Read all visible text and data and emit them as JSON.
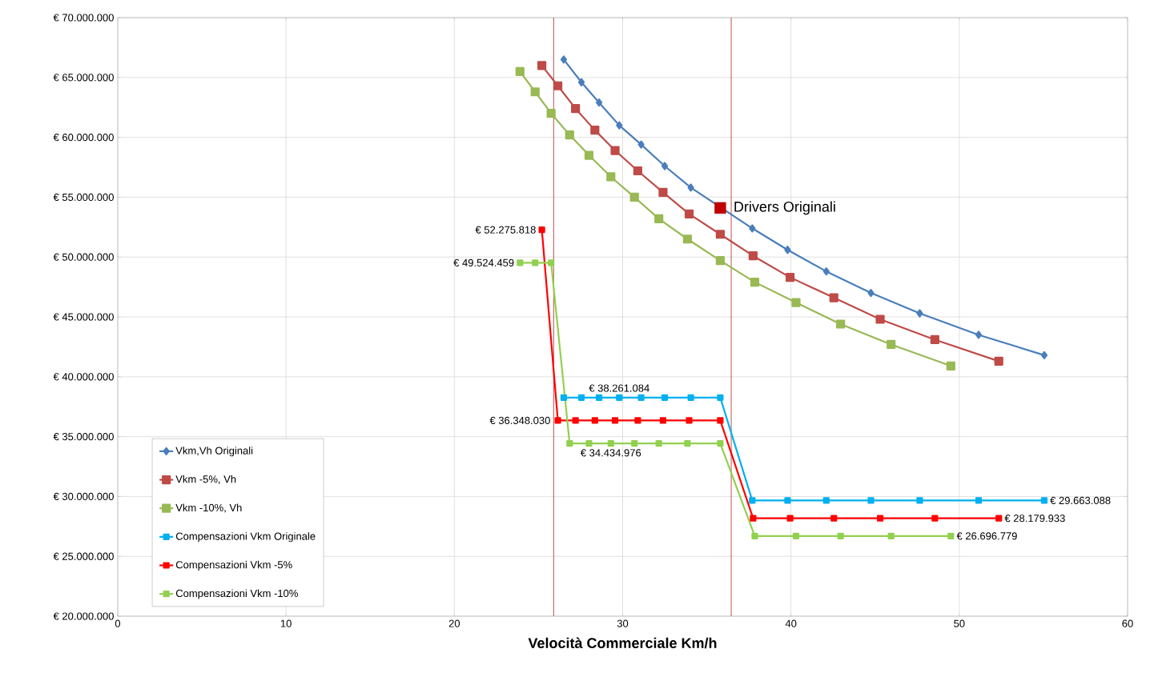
{
  "chart_data": {
    "type": "line",
    "xlabel": "Velocità Commerciale Km/h",
    "xlim": [
      0,
      60
    ],
    "xticks": [
      0,
      10,
      20,
      30,
      40,
      50,
      60
    ],
    "ylim": [
      20000000,
      70000000
    ],
    "yticks": [
      {
        "value": 20000000,
        "label": "€ 20.000.000"
      },
      {
        "value": 25000000,
        "label": "€ 25.000.000"
      },
      {
        "value": 30000000,
        "label": "€ 30.000.000"
      },
      {
        "value": 35000000,
        "label": "€ 35.000.000"
      },
      {
        "value": 40000000,
        "label": "€ 40.000.000"
      },
      {
        "value": 45000000,
        "label": "€ 45.000.000"
      },
      {
        "value": 50000000,
        "label": "€ 50.000.000"
      },
      {
        "value": 55000000,
        "label": "€ 55.000.000"
      },
      {
        "value": 60000000,
        "label": "€ 60.000.000"
      },
      {
        "value": 65000000,
        "label": "€ 65.000.000"
      },
      {
        "value": 70000000,
        "label": "€ 70.000.000"
      }
    ],
    "grid": true,
    "legend": "bottom left",
    "line_style": "solid",
    "series": [
      {
        "name": "Vkm,Vh Originali",
        "color": "#4a7ebb",
        "marker": "diamond",
        "x": [
          26.5,
          27.55,
          28.6,
          29.8,
          31.1,
          32.5,
          34.05,
          35.8,
          37.7,
          39.8,
          42.1,
          44.75,
          47.65,
          51.15,
          55.05
        ],
        "values": [
          66500000,
          64600000,
          62900000,
          61000000,
          59400000,
          57600000,
          55800000,
          null,
          52400000,
          50600000,
          48800000,
          47000000,
          45300000,
          43500000,
          41800000
        ]
      },
      {
        "name": "Vkm -5%, Vh",
        "color": "#be4b48",
        "marker": "square",
        "x": [
          25.2,
          26.15,
          27.2,
          28.35,
          29.55,
          30.9,
          32.4,
          33.95,
          35.8,
          37.75,
          39.95,
          42.55,
          45.3,
          48.55,
          52.35
        ],
        "values": [
          66000000,
          64300000,
          62400000,
          60600000,
          58900000,
          57200000,
          55400000,
          53600000,
          51900000,
          50100000,
          48300000,
          46600000,
          44800000,
          43100000,
          41300000
        ]
      },
      {
        "name": "Vkm -10%, Vh",
        "color": "#98b954",
        "marker": "square",
        "x": [
          23.9,
          24.8,
          25.75,
          26.85,
          28.0,
          29.3,
          30.7,
          32.15,
          33.85,
          35.8,
          37.85,
          40.3,
          42.95,
          45.95,
          49.5
        ],
        "values": [
          65500000,
          63800000,
          62000000,
          60200000,
          58500000,
          56700000,
          55000000,
          53200000,
          51500000,
          49700000,
          47900000,
          46200000,
          44400000,
          42700000,
          40900000
        ]
      },
      {
        "name": "Compensazioni Vkm Originale",
        "color": "#00b0f0",
        "marker": "square",
        "x": [
          26.5,
          27.55,
          28.6,
          29.8,
          31.1,
          32.5,
          34.05,
          35.8,
          37.7,
          39.8,
          42.1,
          44.75,
          47.65,
          51.15,
          55.05
        ],
        "values": [
          38261084,
          38261084,
          38261084,
          38261084,
          38261084,
          38261084,
          38261084,
          38261084,
          29663088,
          29663088,
          29663088,
          29663088,
          29663088,
          29663088,
          29663088
        ],
        "value_labels": [
          null,
          null,
          null,
          "€ 38.261.084",
          null,
          null,
          null,
          null,
          null,
          null,
          null,
          null,
          null,
          null,
          "€ 29.663.088"
        ]
      },
      {
        "name": "Compensazioni Vkm -5%",
        "color": "#ff0000",
        "marker": "square",
        "x": [
          25.2,
          26.15,
          27.2,
          28.35,
          29.55,
          30.9,
          32.4,
          33.95,
          35.8,
          37.75,
          39.95,
          42.55,
          45.3,
          48.55,
          52.35
        ],
        "values": [
          52275818,
          36348030,
          36348030,
          36348030,
          36348030,
          36348030,
          36348030,
          36348030,
          36348030,
          28179933,
          28179933,
          28179933,
          28179933,
          28179933,
          28179933
        ],
        "value_labels": [
          "€ 52.275.818",
          "€ 36.348.030",
          null,
          null,
          null,
          null,
          null,
          null,
          null,
          null,
          null,
          null,
          null,
          null,
          "€ 28.179.933"
        ]
      },
      {
        "name": "Compensazioni Vkm -10%",
        "color": "#92d050",
        "marker": "square",
        "x": [
          23.9,
          24.8,
          25.75,
          26.85,
          28.0,
          29.3,
          30.7,
          32.15,
          33.85,
          35.8,
          37.85,
          40.3,
          42.95,
          45.95,
          49.5
        ],
        "values": [
          49524459,
          49524459,
          49524459,
          34434976,
          34434976,
          34434976,
          34434976,
          34434976,
          34434976,
          34434976,
          26696779,
          26696779,
          26696779,
          26696779,
          26696779
        ],
        "value_labels": [
          "€ 49.524.459",
          null,
          null,
          null,
          null,
          "€ 34.434.976",
          null,
          null,
          null,
          null,
          null,
          null,
          null,
          null,
          "€ 26.696.779"
        ]
      },
      {
        "name": "Drivers Originali",
        "type": "scatter",
        "color": "#c00000",
        "marker": "square",
        "x": [
          35.8
        ],
        "values": [
          54100000
        ]
      }
    ],
    "ref_lines": [
      {
        "axis": "x",
        "value": 25.9,
        "color": "#c0504d"
      },
      {
        "axis": "x",
        "value": 36.45,
        "color": "#c0504d"
      }
    ]
  }
}
